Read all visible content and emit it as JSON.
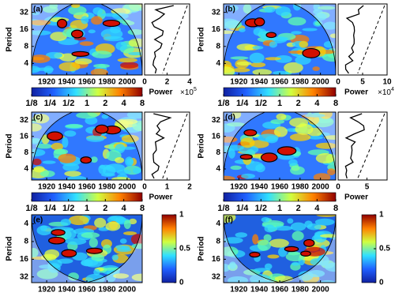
{
  "chart_data": [
    {
      "type": "wavelet",
      "label": "(a)",
      "ylabel": "Period",
      "xlim": [
        1905,
        2015
      ],
      "xticks": [
        1920,
        1940,
        1960,
        1980,
        2000
      ],
      "ylim": [
        2.5,
        45
      ],
      "yticks": [
        4,
        8,
        16,
        32
      ],
      "power_xlim": [
        0,
        4
      ],
      "power_xticks": [
        0,
        2,
        4
      ],
      "power_label": "Power",
      "power_multiplier": "×10",
      "power_exponent": 5,
      "colorbar_lim": [
        0.125,
        8
      ],
      "colorbar_ticks": [
        {
          "value": 0.125,
          "label": "1/8"
        },
        {
          "value": 0.25,
          "label": "1/4"
        },
        {
          "value": 0.5,
          "label": "1/2"
        },
        1,
        2,
        4,
        8
      ]
    },
    {
      "type": "wavelet",
      "label": "(b)",
      "ylabel": "Period",
      "xlim": [
        1905,
        2015
      ],
      "xticks": [
        1920,
        1940,
        1960,
        1980,
        2000
      ],
      "ylim": [
        2.5,
        45
      ],
      "yticks": [
        4,
        8,
        16,
        32
      ],
      "power_xlim": [
        0,
        10
      ],
      "power_xticks": [
        0,
        5,
        10
      ],
      "power_label": "Power",
      "power_multiplier": "×10",
      "power_exponent": 4,
      "colorbar_lim": [
        0.125,
        8
      ],
      "colorbar_ticks": [
        {
          "value": 0.125,
          "label": "1/8"
        },
        {
          "value": 0.25,
          "label": "1/4"
        },
        {
          "value": 0.5,
          "label": "1/2"
        },
        1,
        2,
        4,
        8
      ]
    },
    {
      "type": "wavelet",
      "label": "(c)",
      "ylabel": "Period",
      "xlim": [
        1905,
        2015
      ],
      "xticks": [
        1920,
        1940,
        1960,
        1980,
        2000
      ],
      "ylim": [
        2.5,
        45
      ],
      "yticks": [
        4,
        8,
        16,
        32
      ],
      "power_xlim": [
        0,
        2
      ],
      "power_xticks": [
        0,
        1,
        2
      ],
      "power_label": "Power",
      "colorbar_lim": [
        0.125,
        8
      ],
      "colorbar_ticks": [
        {
          "value": 0.125,
          "label": "1/8"
        },
        {
          "value": 0.25,
          "label": "1/4"
        },
        {
          "value": 0.5,
          "label": "1/2"
        },
        1,
        2,
        4,
        8
      ]
    },
    {
      "type": "wavelet",
      "label": "(d)",
      "ylabel": "Period",
      "xlim": [
        1905,
        2015
      ],
      "xticks": [
        1920,
        1940,
        1960,
        1980,
        2000
      ],
      "ylim": [
        2.5,
        45
      ],
      "yticks": [
        4,
        8,
        16,
        32
      ],
      "power_xlim": [
        0,
        8.5
      ],
      "power_xticks": [
        0,
        5
      ],
      "power_label": "Power",
      "colorbar_lim": [
        0.125,
        8
      ],
      "colorbar_ticks": [
        {
          "value": 0.125,
          "label": "1/8"
        },
        {
          "value": 0.25,
          "label": "1/4"
        },
        {
          "value": 0.5,
          "label": "1/2"
        },
        1,
        2,
        4,
        8
      ]
    },
    {
      "type": "coherence",
      "label": "(e)",
      "ylabel": "Period",
      "xlim": [
        1905,
        2015
      ],
      "xticks": [
        1920,
        1940,
        1960,
        1980,
        2000
      ],
      "ylim": [
        2.8,
        40
      ],
      "y_reversed": true,
      "yticks": [
        4,
        8,
        16,
        32
      ],
      "colorbar_lim": [
        0,
        1
      ],
      "colorbar_ticks": [
        0,
        0.5,
        1
      ]
    },
    {
      "type": "coherence",
      "label": "(f)",
      "ylabel": "Period",
      "xlim": [
        1905,
        2015
      ],
      "xticks": [
        1920,
        1940,
        1960,
        1980,
        2000
      ],
      "ylim": [
        2.8,
        40
      ],
      "y_reversed": true,
      "yticks": [
        4,
        8,
        16,
        32
      ],
      "colorbar_lim": [
        0,
        1
      ],
      "colorbar_ticks": [
        0,
        0.5,
        1
      ]
    }
  ]
}
